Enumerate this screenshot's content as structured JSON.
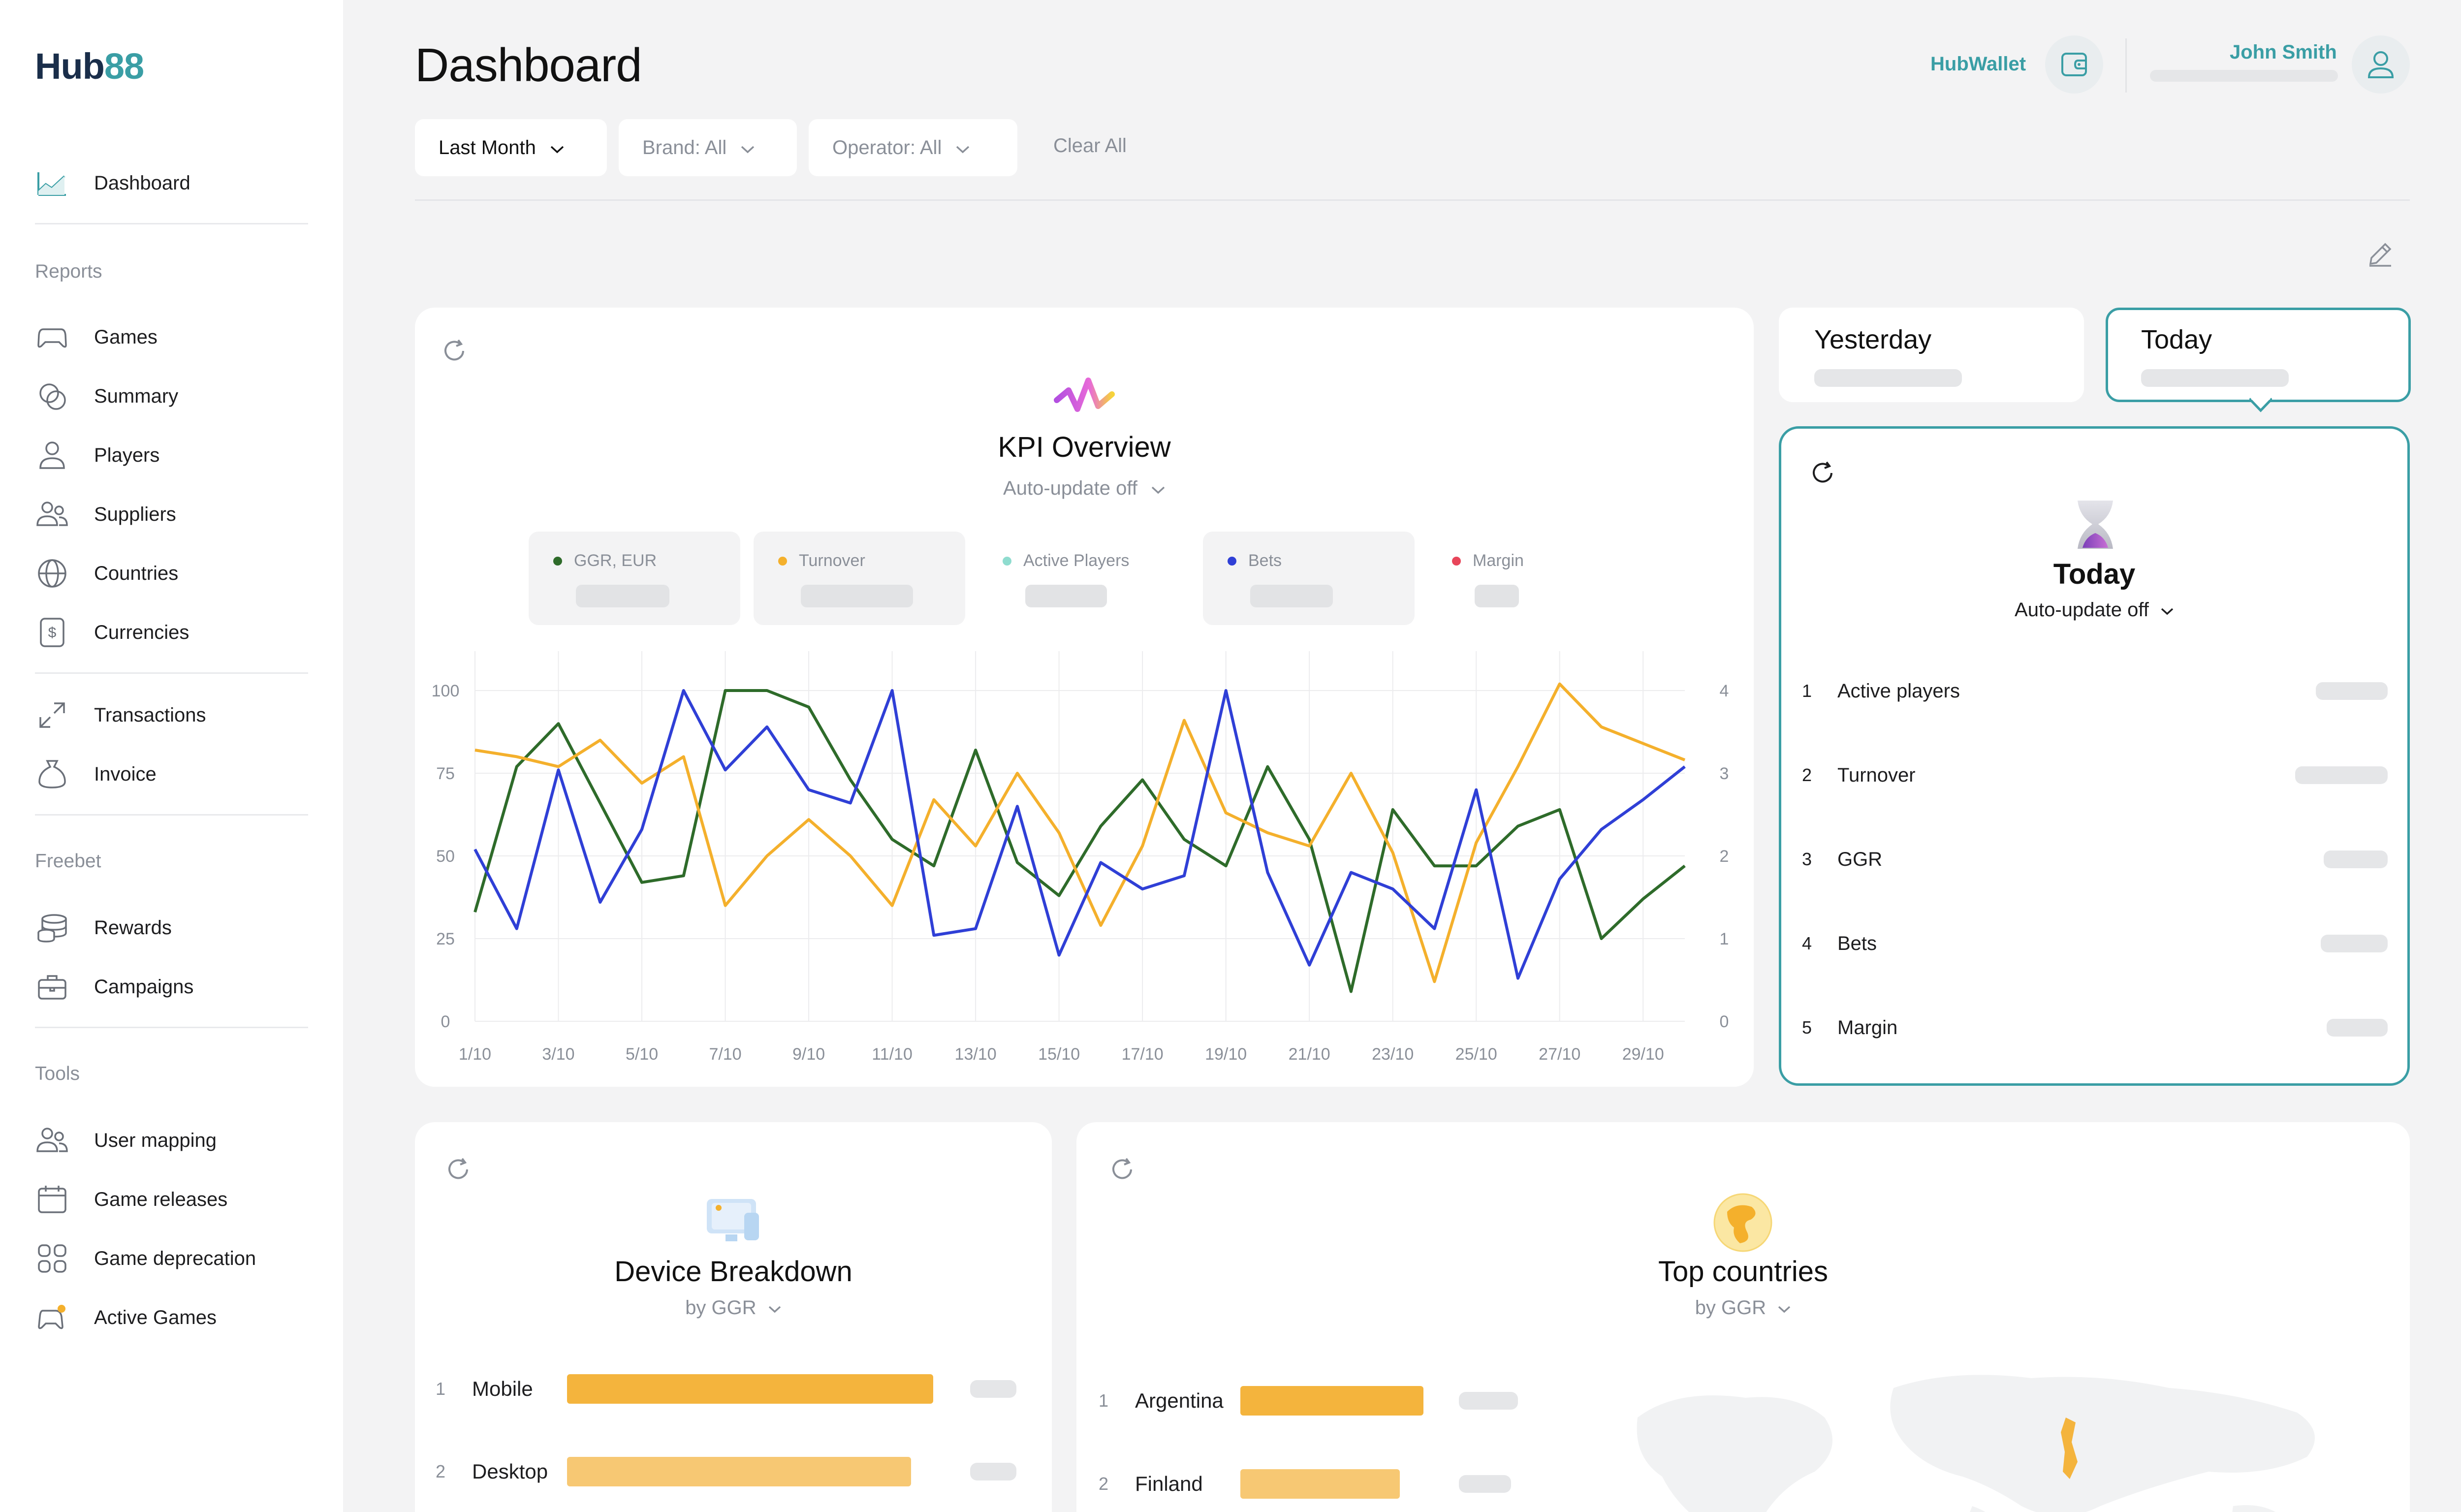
{
  "app": {
    "logo_prefix": "Hub",
    "logo_suffix": "88"
  },
  "sidebar": {
    "dashboard": "Dashboard",
    "reports_section": "Reports",
    "reports": [
      "Games",
      "Summary",
      "Players",
      "Suppliers",
      "Countries",
      "Currencies"
    ],
    "txn": [
      "Transactions",
      "Invoice"
    ],
    "freebet_section": "Freebet",
    "freebet": [
      "Rewards",
      "Campaigns"
    ],
    "tools_section": "Tools",
    "tools": [
      "User mapping",
      "Game releases",
      "Game deprecation",
      "Active Games"
    ]
  },
  "header": {
    "title": "Dashboard",
    "filters": [
      "Last Month",
      "Brand: All",
      "Operator: All"
    ],
    "clear_all": "Clear All",
    "wallet": "HubWallet",
    "user_name": "John Smith"
  },
  "kpi": {
    "title": "KPI Overview",
    "auto_update": "Auto-update off",
    "legend": [
      "GGR, EUR",
      "Turnover",
      "Active Players",
      "Bets",
      "Margin"
    ]
  },
  "colors": {
    "accent": "#3a9ea5",
    "ggr": "#2e6b2a",
    "turnover": "#f4b02c",
    "active_players": "#8fdccf",
    "bets": "#2f3fd6",
    "margin": "#e8465a",
    "bar_mobile": "#f4b43d",
    "bar_desktop": "#f7c873"
  },
  "chart_data": {
    "type": "line",
    "x": [
      "1/10",
      "2/10",
      "3/10",
      "4/10",
      "5/10",
      "6/10",
      "7/10",
      "8/10",
      "9/10",
      "10/10",
      "11/10",
      "12/10",
      "13/10",
      "14/10",
      "15/10",
      "16/10",
      "17/10",
      "18/10",
      "19/10",
      "20/10",
      "21/10",
      "22/10",
      "23/10",
      "24/10",
      "25/10",
      "26/10",
      "27/10",
      "28/10",
      "29/10",
      "30/10"
    ],
    "x_ticks": [
      "1/10",
      "3/10",
      "5/10",
      "7/10",
      "9/10",
      "11/10",
      "13/10",
      "15/10",
      "17/10",
      "19/10",
      "21/10",
      "23/10",
      "25/10",
      "27/10",
      "29/10"
    ],
    "y_left_ticks": [
      "100",
      "75",
      "50",
      "25",
      "0"
    ],
    "y_right_ticks": [
      "4",
      "3",
      "2",
      "1",
      "0"
    ],
    "ylim_left": [
      0,
      100
    ],
    "ylim_right": [
      0,
      4
    ],
    "grid": true,
    "series": [
      {
        "name": "GGR, EUR",
        "values": [
          33,
          77,
          90,
          66,
          42,
          44,
          100,
          100,
          95,
          73,
          55,
          47,
          82,
          48,
          38,
          59,
          73,
          55,
          47,
          77,
          55,
          9,
          64,
          47,
          47,
          59,
          64,
          25,
          37,
          47
        ]
      },
      {
        "name": "Turnover",
        "values": [
          82,
          80,
          77,
          85,
          72,
          80,
          35,
          50,
          61,
          50,
          35,
          67,
          53,
          75,
          57,
          29,
          53,
          91,
          63,
          57,
          53,
          75,
          51,
          12,
          54,
          77,
          102,
          89,
          84,
          79
        ]
      },
      {
        "name": "Bets",
        "values": [
          52,
          28,
          76,
          36,
          58,
          100,
          76,
          89,
          70,
          66,
          100,
          26,
          28,
          65,
          20,
          48,
          40,
          44,
          100,
          45,
          17,
          45,
          40,
          28,
          70,
          13,
          43,
          58,
          67,
          77
        ]
      }
    ]
  },
  "tabs": {
    "yesterday": "Yesterday",
    "today": "Today"
  },
  "today": {
    "title": "Today",
    "auto_update": "Auto-update off",
    "rows": [
      {
        "n": "1",
        "label": "Active players"
      },
      {
        "n": "2",
        "label": "Turnover"
      },
      {
        "n": "3",
        "label": "GGR"
      },
      {
        "n": "4",
        "label": "Bets"
      },
      {
        "n": "5",
        "label": "Margin"
      }
    ]
  },
  "device": {
    "title": "Device Breakdown",
    "sub": "by GGR",
    "rows": [
      {
        "n": "1",
        "label": "Mobile",
        "share": 1.0
      },
      {
        "n": "2",
        "label": "Desktop",
        "share": 0.94
      }
    ]
  },
  "countries": {
    "title": "Top countries",
    "sub": "by GGR",
    "rows": [
      {
        "n": "1",
        "label": "Argentina",
        "share": 1.0
      },
      {
        "n": "2",
        "label": "Finland",
        "share": 0.87
      }
    ]
  }
}
